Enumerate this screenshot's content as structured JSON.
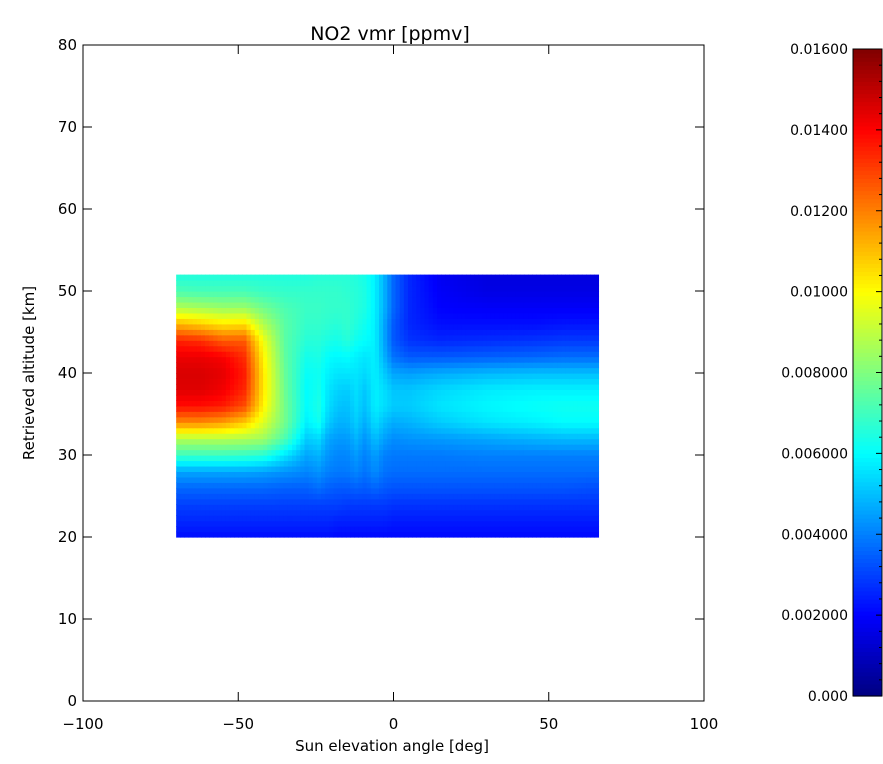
{
  "chart_data": {
    "type": "heatmap",
    "title": "NO2 vmr [ppmv]",
    "xlabel": "Sun elevation angle [deg]",
    "ylabel": "Retrieved altitude [km]",
    "xlim": [
      -100,
      100
    ],
    "ylim": [
      0,
      80
    ],
    "x_ticks": [
      -100,
      -50,
      0,
      50,
      100
    ],
    "x_tick_labels": [
      "−100",
      "−50",
      "0",
      "50",
      "100"
    ],
    "y_ticks": [
      0,
      10,
      20,
      30,
      40,
      50,
      60,
      70,
      80
    ],
    "y_tick_labels": [
      "0",
      "10",
      "20",
      "30",
      "40",
      "50",
      "60",
      "70",
      "80"
    ],
    "grid": false,
    "colormap": "jet",
    "data_extent": {
      "x": [
        -70,
        66
      ],
      "y": [
        20,
        52
      ]
    },
    "colorbar": {
      "range": [
        0,
        0.016
      ],
      "ticks": [
        0,
        0.002,
        0.004,
        0.006,
        0.008,
        0.01,
        0.012,
        0.014,
        0.016
      ],
      "tick_labels": [
        "0.000",
        "0.002000",
        "0.004000",
        "0.006000",
        "0.008000",
        "0.01000",
        "0.01200",
        "0.01400",
        "0.01600"
      ]
    },
    "values": {
      "x": [
        -70,
        -62,
        -55,
        -48,
        -42,
        -35,
        -28,
        -24,
        -21,
        -18,
        -15,
        -12,
        -9,
        -6,
        -3,
        0,
        5,
        15,
        30,
        45,
        55,
        66
      ],
      "y": [
        20,
        22,
        24,
        26,
        28,
        30,
        32,
        34,
        36,
        38,
        40,
        42,
        44,
        46,
        48,
        50,
        52
      ],
      "z": [
        [
          0.0022,
          0.0022,
          0.0022,
          0.0022,
          0.0022,
          0.0022,
          0.0022,
          0.0022,
          0.0022,
          0.0021,
          0.0021,
          0.0021,
          0.0021,
          0.0021,
          0.0021,
          0.0021,
          0.0021,
          0.0021,
          0.0021,
          0.0021,
          0.0021,
          0.0021
        ],
        [
          0.0026,
          0.0026,
          0.0026,
          0.0026,
          0.0026,
          0.0026,
          0.0026,
          0.0026,
          0.0026,
          0.0025,
          0.0025,
          0.0025,
          0.0025,
          0.0025,
          0.0025,
          0.0024,
          0.0024,
          0.0024,
          0.0024,
          0.0024,
          0.0024,
          0.0024
        ],
        [
          0.003,
          0.003,
          0.003,
          0.003,
          0.003,
          0.003,
          0.003,
          0.003,
          0.003,
          0.003,
          0.0029,
          0.0029,
          0.0029,
          0.0029,
          0.0029,
          0.0028,
          0.0028,
          0.0028,
          0.0028,
          0.0028,
          0.0028,
          0.0028
        ],
        [
          0.0036,
          0.0036,
          0.0036,
          0.0036,
          0.0036,
          0.0035,
          0.0035,
          0.0037,
          0.0035,
          0.0034,
          0.0034,
          0.0035,
          0.0034,
          0.0036,
          0.0034,
          0.0033,
          0.0033,
          0.0033,
          0.0033,
          0.0033,
          0.0033,
          0.0032
        ],
        [
          0.0046,
          0.0046,
          0.0046,
          0.0046,
          0.0045,
          0.0043,
          0.0041,
          0.0043,
          0.004,
          0.0039,
          0.0039,
          0.0041,
          0.0038,
          0.0042,
          0.0038,
          0.0037,
          0.0037,
          0.0037,
          0.0037,
          0.0037,
          0.0037,
          0.0037
        ],
        [
          0.0069,
          0.0069,
          0.0069,
          0.0068,
          0.0066,
          0.0056,
          0.0046,
          0.0048,
          0.0043,
          0.0041,
          0.0041,
          0.0044,
          0.004,
          0.0045,
          0.004,
          0.0039,
          0.0039,
          0.0039,
          0.004,
          0.004,
          0.004,
          0.004
        ],
        [
          0.0088,
          0.0088,
          0.0088,
          0.0087,
          0.0085,
          0.0072,
          0.0052,
          0.0054,
          0.0046,
          0.0044,
          0.0044,
          0.0048,
          0.0043,
          0.005,
          0.0045,
          0.0042,
          0.0043,
          0.0044,
          0.0046,
          0.0048,
          0.0049,
          0.0049
        ],
        [
          0.0118,
          0.0118,
          0.0115,
          0.0108,
          0.0095,
          0.0078,
          0.0058,
          0.0062,
          0.0052,
          0.0048,
          0.0048,
          0.0052,
          0.0047,
          0.0055,
          0.005,
          0.0047,
          0.0048,
          0.0052,
          0.0056,
          0.0058,
          0.006,
          0.006
        ],
        [
          0.0138,
          0.0138,
          0.0136,
          0.0128,
          0.0102,
          0.0078,
          0.006,
          0.0064,
          0.0055,
          0.0051,
          0.005,
          0.0054,
          0.005,
          0.0058,
          0.0055,
          0.0052,
          0.0052,
          0.0056,
          0.0059,
          0.0061,
          0.0062,
          0.0062
        ],
        [
          0.0145,
          0.0145,
          0.0142,
          0.0134,
          0.0104,
          0.0077,
          0.006,
          0.0063,
          0.0056,
          0.0053,
          0.0052,
          0.0055,
          0.0051,
          0.0058,
          0.0055,
          0.0051,
          0.0051,
          0.0054,
          0.0057,
          0.0058,
          0.0058,
          0.0058
        ],
        [
          0.0146,
          0.0146,
          0.0144,
          0.0136,
          0.0104,
          0.0076,
          0.0061,
          0.0062,
          0.0058,
          0.0056,
          0.0056,
          0.0056,
          0.0054,
          0.0058,
          0.0052,
          0.0046,
          0.0045,
          0.0047,
          0.0049,
          0.005,
          0.005,
          0.005
        ],
        [
          0.0143,
          0.0143,
          0.0141,
          0.0133,
          0.0102,
          0.0075,
          0.0063,
          0.0064,
          0.006,
          0.0059,
          0.006,
          0.0058,
          0.0056,
          0.0058,
          0.0048,
          0.0038,
          0.0034,
          0.0034,
          0.0035,
          0.0036,
          0.0037,
          0.0037
        ],
        [
          0.0135,
          0.0133,
          0.0126,
          0.0126,
          0.0098,
          0.0074,
          0.0066,
          0.0066,
          0.0064,
          0.0063,
          0.0066,
          0.0062,
          0.006,
          0.0058,
          0.0046,
          0.0034,
          0.0028,
          0.0026,
          0.0027,
          0.0028,
          0.0029,
          0.0029
        ],
        [
          0.0112,
          0.0108,
          0.0104,
          0.0105,
          0.0088,
          0.0074,
          0.0068,
          0.0068,
          0.0067,
          0.0066,
          0.0068,
          0.0065,
          0.0062,
          0.0058,
          0.0046,
          0.0034,
          0.0026,
          0.0022,
          0.0022,
          0.0022,
          0.0023,
          0.0023
        ],
        [
          0.0088,
          0.0086,
          0.0084,
          0.0084,
          0.0078,
          0.0072,
          0.0069,
          0.0069,
          0.0068,
          0.0068,
          0.0068,
          0.0066,
          0.0064,
          0.0058,
          0.0048,
          0.0036,
          0.0026,
          0.002,
          0.0019,
          0.0019,
          0.0019,
          0.0019
        ],
        [
          0.0072,
          0.0071,
          0.0071,
          0.0071,
          0.0069,
          0.0068,
          0.0068,
          0.0068,
          0.0068,
          0.0068,
          0.0067,
          0.0066,
          0.0064,
          0.0058,
          0.0048,
          0.0036,
          0.0026,
          0.0019,
          0.0016,
          0.0016,
          0.0016,
          0.0016
        ],
        [
          0.0065,
          0.0065,
          0.0065,
          0.0065,
          0.0065,
          0.0065,
          0.0065,
          0.0066,
          0.0066,
          0.0066,
          0.0066,
          0.0065,
          0.0063,
          0.0058,
          0.0048,
          0.0036,
          0.0026,
          0.0018,
          0.0015,
          0.0015,
          0.0015,
          0.0015
        ]
      ]
    }
  }
}
